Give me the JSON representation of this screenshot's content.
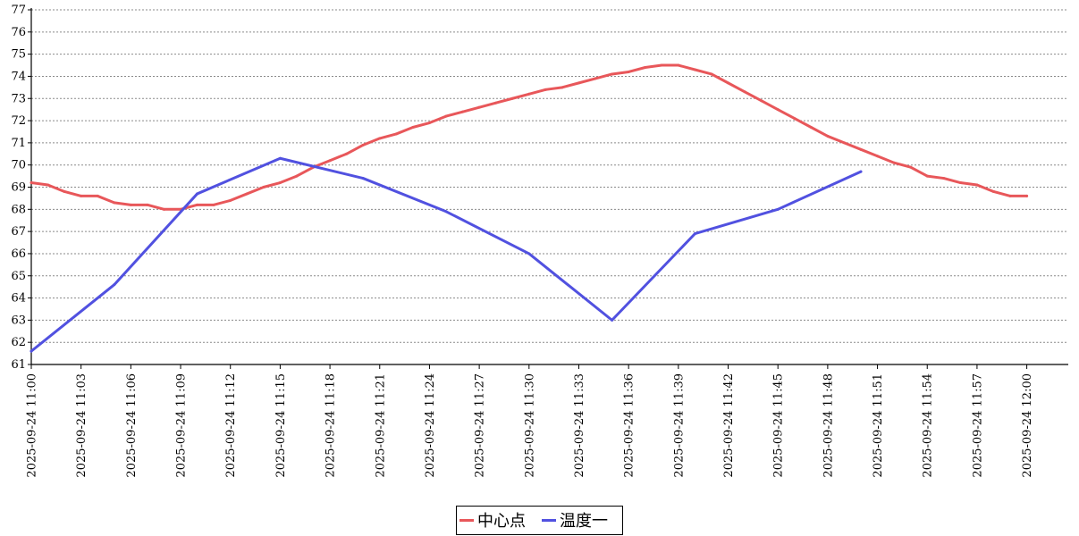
{
  "chart_data": {
    "type": "line",
    "title": "",
    "xlabel": "",
    "ylabel": "",
    "ylim": [
      61,
      77
    ],
    "y_ticks": [
      "61",
      "62",
      "63",
      "64",
      "65",
      "66",
      "67",
      "68",
      "69",
      "70",
      "71",
      "72",
      "73",
      "74",
      "75",
      "76",
      "77"
    ],
    "x_ticks": [
      {
        "minute": 0,
        "label": "2025-09-24 11:00"
      },
      {
        "minute": 3,
        "label": "2025-09-24 11:03"
      },
      {
        "minute": 6,
        "label": "2025-09-24 11:06"
      },
      {
        "minute": 9,
        "label": "2025-09-24 11:09"
      },
      {
        "minute": 12,
        "label": "2025-09-24 11:12"
      },
      {
        "minute": 15,
        "label": "2025-09-24 11:15"
      },
      {
        "minute": 18,
        "label": "2025-09-24 11:18"
      },
      {
        "minute": 21,
        "label": "2025-09-24 11:21"
      },
      {
        "minute": 24,
        "label": "2025-09-24 11:24"
      },
      {
        "minute": 27,
        "label": "2025-09-24 11:27"
      },
      {
        "minute": 30,
        "label": "2025-09-24 11:30"
      },
      {
        "minute": 33,
        "label": "2025-09-24 11:33"
      },
      {
        "minute": 36,
        "label": "2025-09-24 11:36"
      },
      {
        "minute": 39,
        "label": "2025-09-24 11:39"
      },
      {
        "minute": 42,
        "label": "2025-09-24 11:42"
      },
      {
        "minute": 45,
        "label": "2025-09-24 11:45"
      },
      {
        "minute": 48,
        "label": "2025-09-24 11:48"
      },
      {
        "minute": 51,
        "label": "2025-09-24 11:51"
      },
      {
        "minute": 54,
        "label": "2025-09-24 11:54"
      },
      {
        "minute": 57,
        "label": "2025-09-24 11:57"
      },
      {
        "minute": 60,
        "label": "2025-09-24 12:00"
      }
    ],
    "grid": true,
    "legend_position": "bottom-center",
    "series": [
      {
        "name": "中心点",
        "color": "#e8575a",
        "points": [
          [
            0,
            69.2
          ],
          [
            1,
            69.1
          ],
          [
            2,
            68.8
          ],
          [
            3,
            68.6
          ],
          [
            4,
            68.6
          ],
          [
            5,
            68.3
          ],
          [
            6,
            68.2
          ],
          [
            7,
            68.2
          ],
          [
            8,
            68.0
          ],
          [
            9,
            68.0
          ],
          [
            10,
            68.2
          ],
          [
            11,
            68.2
          ],
          [
            12,
            68.4
          ],
          [
            13,
            68.7
          ],
          [
            14,
            69.0
          ],
          [
            15,
            69.2
          ],
          [
            16,
            69.5
          ],
          [
            17,
            69.9
          ],
          [
            18,
            70.2
          ],
          [
            19,
            70.5
          ],
          [
            20,
            70.9
          ],
          [
            21,
            71.2
          ],
          [
            22,
            71.4
          ],
          [
            23,
            71.7
          ],
          [
            24,
            71.9
          ],
          [
            25,
            72.2
          ],
          [
            26,
            72.4
          ],
          [
            27,
            72.6
          ],
          [
            28,
            72.8
          ],
          [
            29,
            73.0
          ],
          [
            30,
            73.2
          ],
          [
            31,
            73.4
          ],
          [
            32,
            73.5
          ],
          [
            33,
            73.7
          ],
          [
            34,
            73.9
          ],
          [
            35,
            74.1
          ],
          [
            36,
            74.2
          ],
          [
            37,
            74.4
          ],
          [
            38,
            74.5
          ],
          [
            39,
            74.5
          ],
          [
            40,
            74.3
          ],
          [
            41,
            74.1
          ],
          [
            42,
            73.7
          ],
          [
            43,
            73.3
          ],
          [
            44,
            72.9
          ],
          [
            45,
            72.5
          ],
          [
            46,
            72.1
          ],
          [
            47,
            71.7
          ],
          [
            48,
            71.3
          ],
          [
            49,
            71.0
          ],
          [
            50,
            70.7
          ],
          [
            51,
            70.4
          ],
          [
            52,
            70.1
          ],
          [
            53,
            69.9
          ],
          [
            54,
            69.5
          ],
          [
            55,
            69.4
          ],
          [
            56,
            69.2
          ],
          [
            57,
            69.1
          ],
          [
            58,
            68.8
          ],
          [
            59,
            68.6
          ],
          [
            60,
            68.6
          ]
        ]
      },
      {
        "name": "温度一",
        "color": "#5151e0",
        "points": [
          [
            0,
            61.6
          ],
          [
            5,
            64.6
          ],
          [
            10,
            68.7
          ],
          [
            15,
            70.3
          ],
          [
            20,
            69.4
          ],
          [
            25,
            67.9
          ],
          [
            30,
            66.0
          ],
          [
            35,
            63.0
          ],
          [
            40,
            66.9
          ],
          [
            45,
            68.0
          ],
          [
            50,
            69.7
          ]
        ]
      }
    ]
  }
}
